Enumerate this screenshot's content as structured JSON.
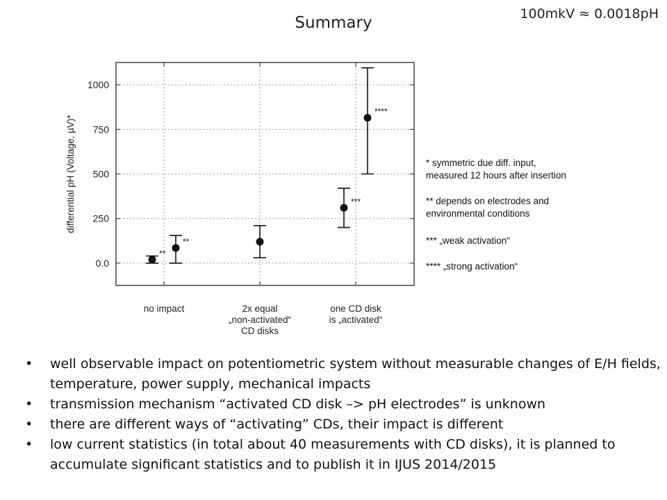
{
  "slide": {
    "title": "Summary",
    "corner_note": "100mkV ≈ 0.0018pH"
  },
  "chart_data": {
    "type": "scatter",
    "title": "",
    "xlabel": "",
    "ylabel": "differential pH (Voltage, µV)*",
    "ylim": [
      -125,
      1125
    ],
    "yticks": [
      0,
      250,
      500,
      750,
      1000
    ],
    "ytick_labels": [
      "0.0",
      "250",
      "500",
      "750",
      "1000"
    ],
    "grid": true,
    "categories": [
      "no impact",
      "2x equal\n„non-activated“\nCD disks",
      "one CD disk\nis „activated“"
    ],
    "points": [
      {
        "group": 0,
        "offset": -1,
        "y": 20,
        "low": 0,
        "high": 40,
        "label": "**"
      },
      {
        "group": 0,
        "offset": 1,
        "y": 85,
        "low": 0,
        "high": 155,
        "label": "**"
      },
      {
        "group": 1,
        "offset": 0,
        "y": 120,
        "low": 30,
        "high": 210,
        "label": ""
      },
      {
        "group": 2,
        "offset": -1,
        "y": 310,
        "low": 200,
        "high": 420,
        "label": "***"
      },
      {
        "group": 2,
        "offset": 1,
        "y": 815,
        "low": 500,
        "high": 1095,
        "label": "****"
      }
    ],
    "legend_notes": [
      "*   symmetric due diff. input,\nmeasured 12 hours after insertion",
      "** depends on electrodes and\nenvironmental conditions",
      "*** „weak activation“",
      "**** „strong activation“"
    ]
  },
  "bullets": [
    "well observable impact on potentiometric system without measurable changes of E/H fields, temperature, power supply, mechanical impacts",
    "transmission mechanism “activated CD disk –> pH electrodes” is unknown",
    "there are different ways of “activating” CDs, their impact is different",
    "low current statistics (in total about 40 measurements with CD disks), it is planned to accumulate significant statistics and to publish it in IJUS 2014/2015"
  ],
  "bullet_symbol": "•"
}
